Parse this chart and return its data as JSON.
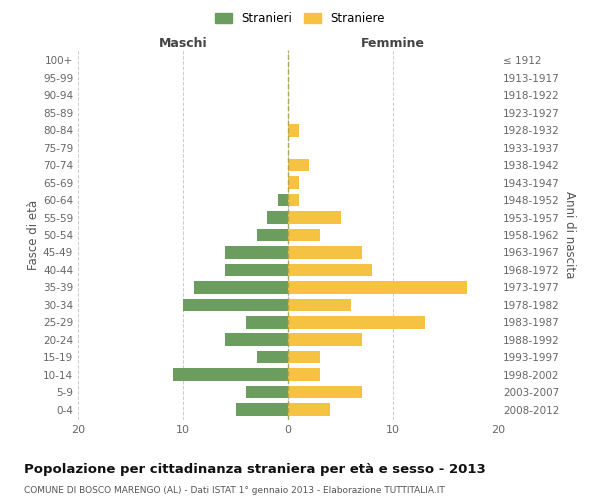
{
  "age_groups": [
    "0-4",
    "5-9",
    "10-14",
    "15-19",
    "20-24",
    "25-29",
    "30-34",
    "35-39",
    "40-44",
    "45-49",
    "50-54",
    "55-59",
    "60-64",
    "65-69",
    "70-74",
    "75-79",
    "80-84",
    "85-89",
    "90-94",
    "95-99",
    "100+"
  ],
  "birth_years": [
    "2008-2012",
    "2003-2007",
    "1998-2002",
    "1993-1997",
    "1988-1992",
    "1983-1987",
    "1978-1982",
    "1973-1977",
    "1968-1972",
    "1963-1967",
    "1958-1962",
    "1953-1957",
    "1948-1952",
    "1943-1947",
    "1938-1942",
    "1933-1937",
    "1928-1932",
    "1923-1927",
    "1918-1922",
    "1913-1917",
    "≤ 1912"
  ],
  "males": [
    5,
    4,
    11,
    3,
    6,
    4,
    10,
    9,
    6,
    6,
    3,
    2,
    1,
    0,
    0,
    0,
    0,
    0,
    0,
    0,
    0
  ],
  "females": [
    4,
    7,
    3,
    3,
    7,
    13,
    6,
    17,
    8,
    7,
    3,
    5,
    1,
    1,
    2,
    0,
    1,
    0,
    0,
    0,
    0
  ],
  "male_color": "#6b9e5e",
  "female_color": "#f5c242",
  "background_color": "#ffffff",
  "grid_color": "#cccccc",
  "title": "Popolazione per cittadinanza straniera per età e sesso - 2013",
  "subtitle": "COMUNE DI BOSCO MARENGO (AL) - Dati ISTAT 1° gennaio 2013 - Elaborazione TUTTITALIA.IT",
  "xlabel_left": "Maschi",
  "xlabel_right": "Femmine",
  "ylabel_left": "Fasce di età",
  "ylabel_right": "Anni di nascita",
  "legend_male": "Stranieri",
  "legend_female": "Straniere",
  "xlim": 20
}
